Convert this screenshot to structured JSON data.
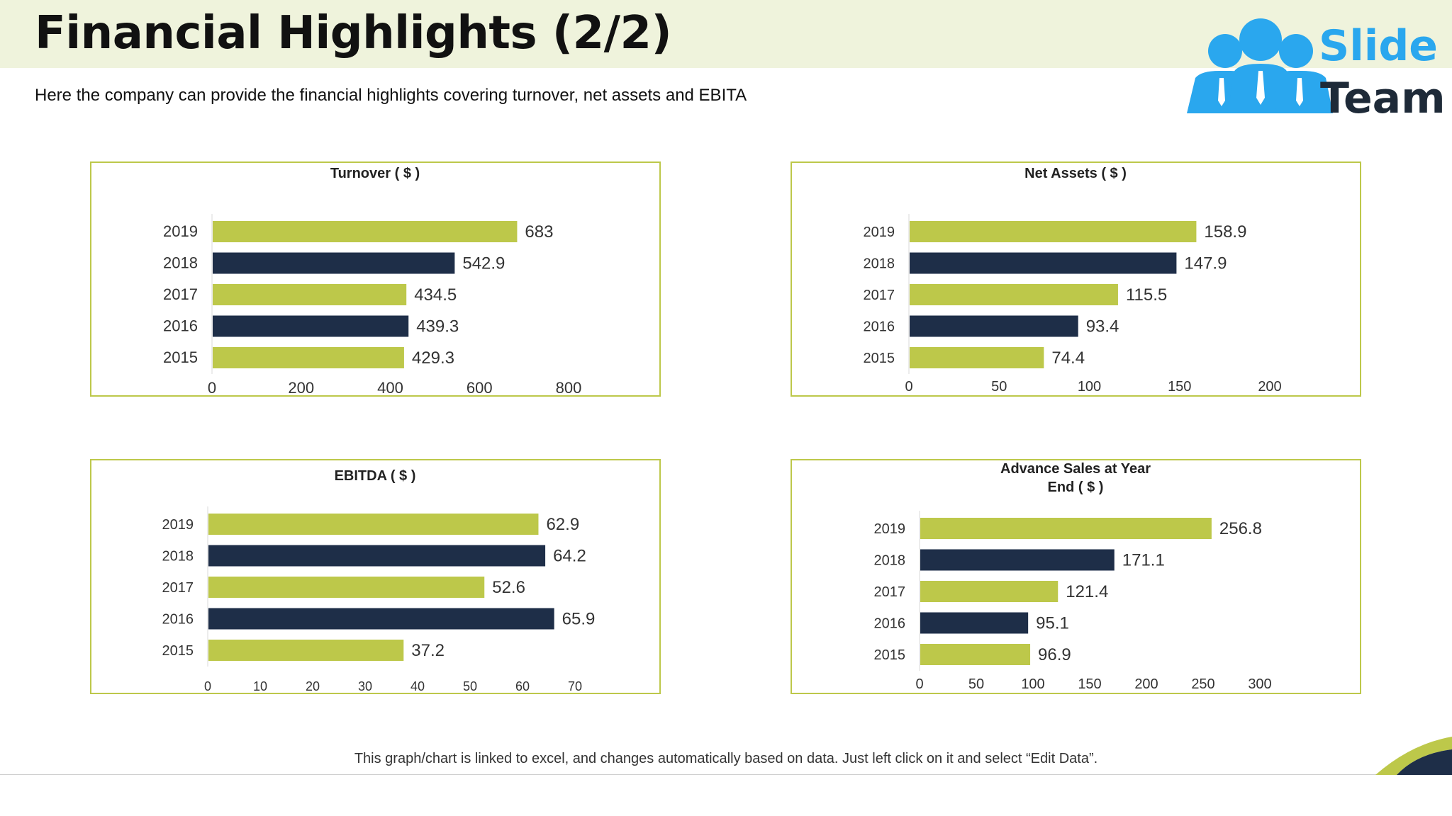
{
  "page": {
    "title": "Financial Highlights (2/2)",
    "subtitle": "Here the company can provide the financial highlights covering turnover, net assets and EBITA",
    "footer": "This graph/chart is linked to excel, and changes automatically based on data. Just left click on it and select “Edit Data”."
  },
  "logo": {
    "line1": "Slide",
    "line2": "Team",
    "icon": "team-people-icon"
  },
  "colors": {
    "green": "#bdc84a",
    "navy": "#1e2e48",
    "band": "#eff3dc",
    "logo_blue": "#2aa7ee"
  },
  "chart_data": [
    {
      "type": "bar",
      "orientation": "horizontal",
      "title": [
        "Turnover ( $ )"
      ],
      "categories": [
        "2019",
        "2018",
        "2017",
        "2016",
        "2015"
      ],
      "values": [
        683,
        542.9,
        434.5,
        439.3,
        429.3
      ],
      "value_labels": [
        "683",
        "542.9",
        "434.5",
        "439.3",
        "429.3"
      ],
      "xlim": [
        0,
        800
      ],
      "ticks": [
        0,
        200,
        400,
        600,
        800
      ],
      "bar_colors": [
        "#bdc84a",
        "#1e2e48",
        "#bdc84a",
        "#1e2e48",
        "#bdc84a"
      ],
      "grid": false
    },
    {
      "type": "bar",
      "orientation": "horizontal",
      "title": [
        "Net Assets ( $ )"
      ],
      "categories": [
        "2019",
        "2018",
        "2017",
        "2016",
        "2015"
      ],
      "values": [
        158.9,
        147.9,
        115.5,
        93.4,
        74.4
      ],
      "value_labels": [
        "158.9",
        "147.9",
        "115.5",
        "93.4",
        "74.4"
      ],
      "xlim": [
        0,
        200
      ],
      "ticks": [
        0,
        50,
        100,
        150,
        200
      ],
      "bar_colors": [
        "#bdc84a",
        "#1e2e48",
        "#bdc84a",
        "#1e2e48",
        "#bdc84a"
      ],
      "grid": false
    },
    {
      "type": "bar",
      "orientation": "horizontal",
      "title": [
        "EBITDA ( $ )"
      ],
      "categories": [
        "2019",
        "2018",
        "2017",
        "2016",
        "2015"
      ],
      "values": [
        62.9,
        64.2,
        52.6,
        65.9,
        37.2
      ],
      "value_labels": [
        "62.9",
        "64.2",
        "52.6",
        "65.9",
        "37.2"
      ],
      "xlim": [
        0,
        70
      ],
      "ticks": [
        0,
        10,
        20,
        30,
        40,
        50,
        60,
        70
      ],
      "bar_colors": [
        "#bdc84a",
        "#1e2e48",
        "#bdc84a",
        "#1e2e48",
        "#bdc84a"
      ],
      "grid": false
    },
    {
      "type": "bar",
      "orientation": "horizontal",
      "title": [
        "Advance Sales at Year",
        "End ( $ )"
      ],
      "categories": [
        "2019",
        "2018",
        "2017",
        "2016",
        "2015"
      ],
      "values": [
        256.8,
        171.1,
        121.4,
        95.1,
        96.9
      ],
      "value_labels": [
        "256.8",
        "171.1",
        "121.4",
        "95.1",
        "96.9"
      ],
      "xlim": [
        0,
        300
      ],
      "ticks": [
        0,
        50,
        100,
        150,
        200,
        250,
        300
      ],
      "bar_colors": [
        "#bdc84a",
        "#1e2e48",
        "#bdc84a",
        "#1e2e48",
        "#bdc84a"
      ],
      "grid": false
    }
  ]
}
